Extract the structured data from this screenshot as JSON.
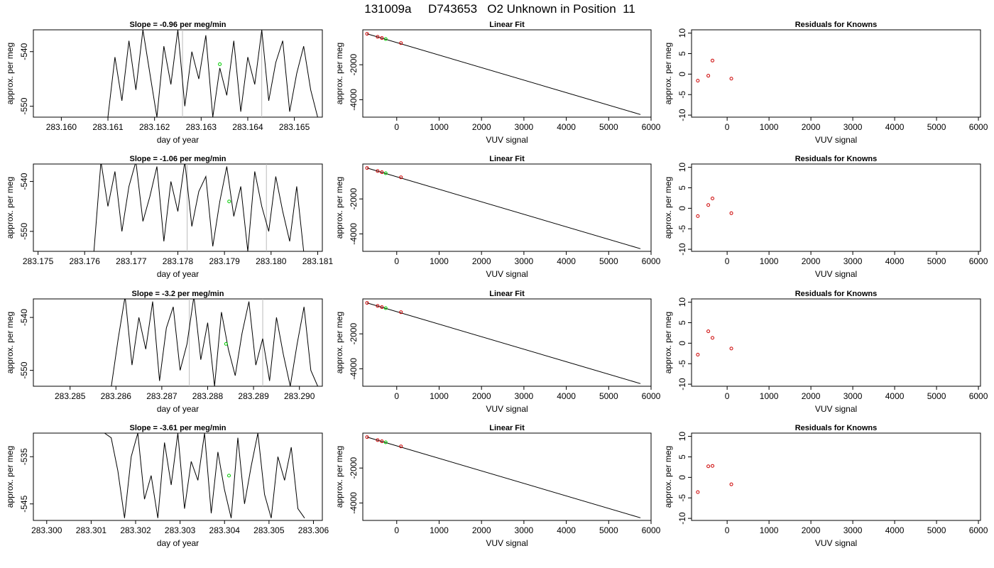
{
  "figure_title": "131009a     D743653   O2 Unknown in Position  11",
  "colors": {
    "line": "#000000",
    "known_point": "#cc0000",
    "unknown_point": "#00cc00",
    "grid_vline": "#bbbbbb"
  },
  "chart_data": [
    {
      "type": "line",
      "title": "Slope =  -0.96  per meg/min",
      "xlabel": "day of year",
      "ylabel": "approx. per meg",
      "xlim": [
        283.1594,
        283.1656
      ],
      "ylim": [
        -552.0,
        -536.0
      ],
      "xticks": [
        "283.160",
        "283.161",
        "283.162",
        "283.163",
        "283.164",
        "283.165"
      ],
      "yticks": [
        "-540",
        "-550"
      ],
      "vlines": [
        283.1626,
        283.1643
      ],
      "marker": {
        "x": 283.1634,
        "y": -542.3
      },
      "series": [
        {
          "x": [
            283.161,
            283.16115,
            283.1613,
            283.16145,
            283.1616,
            283.16175,
            283.1619,
            283.16205,
            283.1622,
            283.16235,
            283.1625,
            283.16265,
            283.1628,
            283.16295,
            283.1631,
            283.16325,
            283.1634,
            283.16355,
            283.1637,
            283.16385,
            283.164,
            283.16415,
            283.1643,
            283.16445,
            283.1646,
            283.16475,
            283.1649,
            283.16505,
            283.1652,
            283.16535,
            283.1655
          ],
          "y": [
            -552,
            -541,
            -549,
            -538,
            -547,
            -536,
            -544,
            -552,
            -539,
            -546,
            -536,
            -550,
            -540,
            -545,
            -537,
            -552,
            -543,
            -548,
            -538,
            -551,
            -541,
            -546,
            -536,
            -549,
            -542,
            -538,
            -551,
            -544,
            -539,
            -547,
            -552
          ]
        }
      ]
    },
    {
      "type": "line",
      "title": "Slope =  -1.06  per meg/min",
      "xlabel": "day of year",
      "ylabel": "approx. per meg",
      "xlim": [
        283.1749,
        283.1811
      ],
      "ylim": [
        -554.0,
        -536.5
      ],
      "xticks": [
        "283.175",
        "283.176",
        "283.177",
        "283.178",
        "283.179",
        "283.180",
        "283.181"
      ],
      "yticks": [
        "-540",
        "-550"
      ],
      "vlines": [
        283.1782,
        283.1799
      ],
      "marker": {
        "x": 283.1791,
        "y": -544.0
      },
      "series": [
        {
          "x": [
            283.1762,
            283.17635,
            283.1765,
            283.17665,
            283.1768,
            283.17695,
            283.1771,
            283.17725,
            283.1774,
            283.17755,
            283.1777,
            283.17785,
            283.178,
            283.17815,
            283.1783,
            283.17845,
            283.1786,
            283.17875,
            283.1789,
            283.17905,
            283.1792,
            283.17935,
            283.1795,
            283.17965,
            283.1798,
            283.17995,
            283.1801,
            283.18025,
            283.1804,
            283.18055,
            283.1807
          ],
          "y": [
            -554,
            -536,
            -545,
            -538,
            -550,
            -541,
            -536,
            -548,
            -543,
            -537,
            -552,
            -540,
            -546,
            -536,
            -549,
            -542,
            -539,
            -553,
            -544,
            -537,
            -547,
            -541,
            -554,
            -538,
            -545,
            -550,
            -539,
            -546,
            -552,
            -541,
            -554
          ]
        }
      ]
    },
    {
      "type": "line",
      "title": "Slope =  -3.2  per meg/min",
      "xlabel": "day of year",
      "ylabel": "approx. per meg",
      "xlim": [
        283.2842,
        283.2905
      ],
      "ylim": [
        -553.0,
        -536.5
      ],
      "xticks": [
        "283.285",
        "283.286",
        "283.287",
        "283.288",
        "283.289",
        "283.290"
      ],
      "yticks": [
        "-540",
        "-550"
      ],
      "vlines": [
        283.2876,
        283.2892
      ],
      "marker": {
        "x": 283.2884,
        "y": -545.0
      },
      "series": [
        {
          "x": [
            283.2859,
            283.28605,
            283.2862,
            283.28635,
            283.2865,
            283.28665,
            283.2868,
            283.28695,
            283.2871,
            283.28725,
            283.2874,
            283.28755,
            283.2877,
            283.28785,
            283.288,
            283.28815,
            283.2883,
            283.28845,
            283.2886,
            283.28875,
            283.2889,
            283.28905,
            283.2892,
            283.28935,
            283.2895,
            283.28965,
            283.2898,
            283.28995,
            283.2901,
            283.29025,
            283.2904
          ],
          "y": [
            -553,
            -544,
            -536,
            -549,
            -540,
            -546,
            -537,
            -552,
            -542,
            -538,
            -550,
            -545,
            -536,
            -548,
            -541,
            -553,
            -539,
            -546,
            -551,
            -543,
            -537,
            -549,
            -544,
            -552,
            -540,
            -547,
            -553,
            -545,
            -538,
            -550,
            -553
          ]
        }
      ]
    },
    {
      "type": "line",
      "title": "Slope =  -3.61  per meg/min",
      "xlabel": "day of year",
      "ylabel": "approx. per meg",
      "xlim": [
        283.2997,
        283.3062
      ],
      "ylim": [
        -548.5,
        -530.0
      ],
      "xticks": [
        "283.300",
        "283.301",
        "283.302",
        "283.303",
        "283.304",
        "283.305",
        "283.306"
      ],
      "yticks": [
        "-535",
        "-545"
      ],
      "vlines": [],
      "marker": {
        "x": 283.3041,
        "y": -539.0
      },
      "series": [
        {
          "x": [
            283.3013,
            283.30145,
            283.3016,
            283.30175,
            283.3019,
            283.30205,
            283.3022,
            283.30235,
            283.3025,
            283.30265,
            283.3028,
            283.30295,
            283.3031,
            283.30325,
            283.3034,
            283.30355,
            283.3037,
            283.30385,
            283.304,
            283.30415,
            283.3043,
            283.30445,
            283.3046,
            283.30475,
            283.3049,
            283.30505,
            283.3052,
            283.30535,
            283.3055,
            283.30565,
            283.3058
          ],
          "y": [
            -530,
            -531,
            -538,
            -548,
            -535,
            -530,
            -544,
            -539,
            -548,
            -532,
            -541,
            -530,
            -546,
            -536,
            -540,
            -530,
            -547,
            -534,
            -542,
            -548,
            -531,
            -545,
            -537,
            -530,
            -543,
            -548,
            -535,
            -540,
            -533,
            -546,
            -548
          ]
        }
      ]
    },
    {
      "type": "scatter",
      "title": "Linear Fit",
      "xlabel": "VUV signal",
      "ylabel": "approx. per meg",
      "xlim": [
        -800,
        6000
      ],
      "ylim": [
        -5000,
        0
      ],
      "xticks": [
        0,
        1000,
        2000,
        3000,
        4000,
        5000,
        6000
      ],
      "yticks": [
        -2000,
        -4000
      ],
      "fit_line": {
        "x": [
          -700,
          5750
        ],
        "y": [
          -230,
          -4850
        ]
      },
      "knowns": {
        "x": [
          -700,
          -450,
          -350,
          100
        ],
        "y": [
          -230,
          -400,
          -470,
          -760
        ]
      },
      "unknowns": {
        "x": [
          -260
        ],
        "y": [
          -530
        ]
      }
    },
    {
      "type": "scatter",
      "title": "Linear Fit",
      "xlabel": "VUV signal",
      "ylabel": "approx. per meg",
      "xlim": [
        -800,
        6000
      ],
      "ylim": [
        -5000,
        0
      ],
      "xticks": [
        0,
        1000,
        2000,
        3000,
        4000,
        5000,
        6000
      ],
      "yticks": [
        -2000,
        -4000
      ],
      "fit_line": {
        "x": [
          -700,
          5750
        ],
        "y": [
          -230,
          -4850
        ]
      },
      "knowns": {
        "x": [
          -700,
          -450,
          -350,
          100
        ],
        "y": [
          -230,
          -400,
          -470,
          -760
        ]
      },
      "unknowns": {
        "x": [
          -260
        ],
        "y": [
          -530
        ]
      }
    },
    {
      "type": "scatter",
      "title": "Linear Fit",
      "xlabel": "VUV signal",
      "ylabel": "approx. per meg",
      "xlim": [
        -800,
        6000
      ],
      "ylim": [
        -5000,
        0
      ],
      "xticks": [
        0,
        1000,
        2000,
        3000,
        4000,
        5000,
        6000
      ],
      "yticks": [
        -2000,
        -4000
      ],
      "fit_line": {
        "x": [
          -700,
          5750
        ],
        "y": [
          -230,
          -4850
        ]
      },
      "knowns": {
        "x": [
          -700,
          -450,
          -350,
          100
        ],
        "y": [
          -230,
          -400,
          -470,
          -760
        ]
      },
      "unknowns": {
        "x": [
          -260
        ],
        "y": [
          -530
        ]
      }
    },
    {
      "type": "scatter",
      "title": "Linear Fit",
      "xlabel": "VUV signal",
      "ylabel": "approx. per meg",
      "xlim": [
        -800,
        6000
      ],
      "ylim": [
        -5000,
        0
      ],
      "xticks": [
        0,
        1000,
        2000,
        3000,
        4000,
        5000,
        6000
      ],
      "yticks": [
        -2000,
        -4000
      ],
      "fit_line": {
        "x": [
          -700,
          5750
        ],
        "y": [
          -230,
          -4850
        ]
      },
      "knowns": {
        "x": [
          -700,
          -450,
          -350,
          100
        ],
        "y": [
          -230,
          -400,
          -470,
          -760
        ]
      },
      "unknowns": {
        "x": [
          -260
        ],
        "y": [
          -530
        ]
      }
    },
    {
      "type": "scatter",
      "title": "Residuals for Knowns",
      "xlabel": "VUV signal",
      "ylabel": "approx. per meg",
      "xlim": [
        -850,
        6050
      ],
      "ylim": [
        -10.5,
        10.8
      ],
      "xticks": [
        0,
        1000,
        2000,
        3000,
        4000,
        5000,
        6000
      ],
      "yticks": [
        10,
        5,
        0,
        -5,
        -10
      ],
      "knowns": {
        "x": [
          -700,
          -450,
          -350,
          100
        ],
        "y": [
          -1.6,
          -0.4,
          3.3,
          -1.1
        ]
      }
    },
    {
      "type": "scatter",
      "title": "Residuals for Knowns",
      "xlabel": "VUV signal",
      "ylabel": "approx. per meg",
      "xlim": [
        -850,
        6050
      ],
      "ylim": [
        -10.5,
        10.8
      ],
      "xticks": [
        0,
        1000,
        2000,
        3000,
        4000,
        5000,
        6000
      ],
      "yticks": [
        10,
        5,
        0,
        -5,
        -10
      ],
      "knowns": {
        "x": [
          -700,
          -450,
          -350,
          100
        ],
        "y": [
          -1.9,
          0.8,
          2.4,
          -1.2
        ]
      }
    },
    {
      "type": "scatter",
      "title": "Residuals for Knowns",
      "xlabel": "VUV signal",
      "ylabel": "approx. per meg",
      "xlim": [
        -850,
        6050
      ],
      "ylim": [
        -10.5,
        10.8
      ],
      "xticks": [
        0,
        1000,
        2000,
        3000,
        4000,
        5000,
        6000
      ],
      "yticks": [
        10,
        5,
        0,
        -5,
        -10
      ],
      "knowns": {
        "x": [
          -700,
          -450,
          -350,
          100
        ],
        "y": [
          -2.8,
          2.9,
          1.3,
          -1.3
        ]
      }
    },
    {
      "type": "scatter",
      "title": "Residuals for Knowns",
      "xlabel": "VUV signal",
      "ylabel": "approx. per meg",
      "xlim": [
        -850,
        6050
      ],
      "ylim": [
        -10.5,
        10.8
      ],
      "xticks": [
        0,
        1000,
        2000,
        3000,
        4000,
        5000,
        6000
      ],
      "yticks": [
        10,
        5,
        0,
        -5,
        -10
      ],
      "knowns": {
        "x": [
          -700,
          -450,
          -350,
          100
        ],
        "y": [
          -3.6,
          2.7,
          2.8,
          -1.7
        ]
      }
    }
  ]
}
